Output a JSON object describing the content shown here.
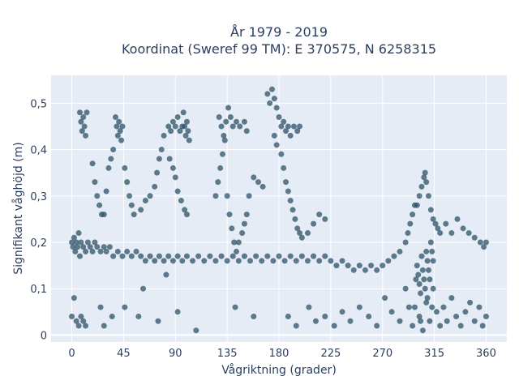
{
  "chart_data": {
    "type": "scatter",
    "title_lines": [
      "År 1979 - 2019",
      "Koordinat (Sweref 99 TM): E 370575, N 6258315"
    ],
    "xlabel": "Vågriktning (grader)",
    "ylabel": "Signifikant våghöjd (m)",
    "xlim": [
      -18,
      378
    ],
    "ylim": [
      -0.015,
      0.56
    ],
    "x_ticks": [
      0,
      45,
      90,
      135,
      180,
      225,
      270,
      315,
      360
    ],
    "x_tick_labels": [
      "0",
      "45",
      "90",
      "135",
      "180",
      "225",
      "270",
      "315",
      "360"
    ],
    "y_ticks": [
      0,
      0.1,
      0.2,
      0.3,
      0.4,
      0.5
    ],
    "y_tick_labels": [
      "0",
      "0,1",
      "0,2",
      "0,3",
      "0,4",
      "0,5"
    ],
    "grid": true,
    "background_color": "#e5ecf6",
    "marker_color": "#2e5367",
    "series": [
      {
        "points": [
          [
            0,
            0.2
          ],
          [
            1,
            0.19
          ],
          [
            2,
            0.21
          ],
          [
            3,
            0.18
          ],
          [
            4,
            0.2
          ],
          [
            5,
            0.19
          ],
          [
            6,
            0.22
          ],
          [
            7,
            0.17
          ],
          [
            8,
            0.2
          ],
          [
            10,
            0.19
          ],
          [
            12,
            0.18
          ],
          [
            14,
            0.2
          ],
          [
            16,
            0.19
          ],
          [
            18,
            0.18
          ],
          [
            20,
            0.2
          ],
          [
            22,
            0.19
          ],
          [
            25,
            0.18
          ],
          [
            28,
            0.19
          ],
          [
            30,
            0.18
          ],
          [
            33,
            0.19
          ],
          [
            36,
            0.17
          ],
          [
            40,
            0.18
          ],
          [
            44,
            0.17
          ],
          [
            48,
            0.18
          ],
          [
            52,
            0.17
          ],
          [
            56,
            0.18
          ],
          [
            60,
            0.17
          ],
          [
            64,
            0.16
          ],
          [
            68,
            0.17
          ],
          [
            72,
            0.16
          ],
          [
            76,
            0.17
          ],
          [
            80,
            0.16
          ],
          [
            84,
            0.17
          ],
          [
            88,
            0.16
          ],
          [
            92,
            0.17
          ],
          [
            96,
            0.16
          ],
          [
            100,
            0.17
          ],
          [
            105,
            0.16
          ],
          [
            110,
            0.17
          ],
          [
            115,
            0.16
          ],
          [
            120,
            0.17
          ],
          [
            125,
            0.16
          ],
          [
            130,
            0.17
          ],
          [
            135,
            0.16
          ],
          [
            140,
            0.17
          ],
          [
            145,
            0.16
          ],
          [
            150,
            0.17
          ],
          [
            155,
            0.16
          ],
          [
            160,
            0.17
          ],
          [
            165,
            0.16
          ],
          [
            170,
            0.17
          ],
          [
            175,
            0.16
          ],
          [
            180,
            0.17
          ],
          [
            185,
            0.16
          ],
          [
            190,
            0.17
          ],
          [
            195,
            0.16
          ],
          [
            200,
            0.17
          ],
          [
            205,
            0.16
          ],
          [
            210,
            0.17
          ],
          [
            215,
            0.16
          ],
          [
            220,
            0.17
          ],
          [
            225,
            0.16
          ],
          [
            230,
            0.15
          ],
          [
            235,
            0.16
          ],
          [
            240,
            0.15
          ],
          [
            245,
            0.14
          ],
          [
            250,
            0.15
          ],
          [
            255,
            0.14
          ],
          [
            260,
            0.15
          ],
          [
            265,
            0.14
          ],
          [
            270,
            0.15
          ],
          [
            275,
            0.16
          ],
          [
            280,
            0.17
          ],
          [
            285,
            0.18
          ],
          [
            290,
            0.2
          ],
          [
            292,
            0.22
          ],
          [
            294,
            0.24
          ],
          [
            296,
            0.26
          ],
          [
            298,
            0.28
          ],
          [
            300,
            0.28
          ],
          [
            302,
            0.3
          ],
          [
            304,
            0.32
          ],
          [
            306,
            0.34
          ],
          [
            307,
            0.35
          ],
          [
            308,
            0.33
          ],
          [
            310,
            0.3
          ],
          [
            312,
            0.27
          ],
          [
            314,
            0.25
          ],
          [
            316,
            0.24
          ],
          [
            318,
            0.23
          ],
          [
            320,
            0.22
          ],
          [
            325,
            0.24
          ],
          [
            330,
            0.22
          ],
          [
            335,
            0.25
          ],
          [
            340,
            0.23
          ],
          [
            345,
            0.22
          ],
          [
            350,
            0.21
          ],
          [
            355,
            0.2
          ],
          [
            358,
            0.19
          ],
          [
            360,
            0.2
          ],
          [
            7,
            0.48
          ],
          [
            8,
            0.46
          ],
          [
            9,
            0.44
          ],
          [
            10,
            0.47
          ],
          [
            11,
            0.45
          ],
          [
            12,
            0.43
          ],
          [
            13,
            0.48
          ],
          [
            38,
            0.47
          ],
          [
            39,
            0.45
          ],
          [
            40,
            0.43
          ],
          [
            41,
            0.46
          ],
          [
            42,
            0.44
          ],
          [
            43,
            0.42
          ],
          [
            44,
            0.45
          ],
          [
            84,
            0.45
          ],
          [
            86,
            0.44
          ],
          [
            88,
            0.46
          ],
          [
            90,
            0.45
          ],
          [
            92,
            0.47
          ],
          [
            94,
            0.44
          ],
          [
            96,
            0.45
          ],
          [
            97,
            0.48
          ],
          [
            98,
            0.45
          ],
          [
            99,
            0.43
          ],
          [
            100,
            0.46
          ],
          [
            101,
            0.44
          ],
          [
            102,
            0.42
          ],
          [
            128,
            0.47
          ],
          [
            130,
            0.45
          ],
          [
            132,
            0.43
          ],
          [
            134,
            0.46
          ],
          [
            136,
            0.49
          ],
          [
            138,
            0.47
          ],
          [
            140,
            0.45
          ],
          [
            143,
            0.46
          ],
          [
            146,
            0.45
          ],
          [
            150,
            0.46
          ],
          [
            152,
            0.44
          ],
          [
            170,
            0.52
          ],
          [
            172,
            0.5
          ],
          [
            174,
            0.53
          ],
          [
            176,
            0.51
          ],
          [
            178,
            0.49
          ],
          [
            180,
            0.47
          ],
          [
            182,
            0.45
          ],
          [
            184,
            0.46
          ],
          [
            186,
            0.44
          ],
          [
            188,
            0.45
          ],
          [
            190,
            0.43
          ],
          [
            193,
            0.45
          ],
          [
            196,
            0.44
          ],
          [
            198,
            0.45
          ],
          [
            18,
            0.37
          ],
          [
            20,
            0.33
          ],
          [
            22,
            0.3
          ],
          [
            24,
            0.28
          ],
          [
            26,
            0.26
          ],
          [
            28,
            0.26
          ],
          [
            30,
            0.31
          ],
          [
            32,
            0.36
          ],
          [
            34,
            0.38
          ],
          [
            36,
            0.4
          ],
          [
            46,
            0.36
          ],
          [
            48,
            0.33
          ],
          [
            50,
            0.3
          ],
          [
            52,
            0.28
          ],
          [
            54,
            0.26
          ],
          [
            60,
            0.27
          ],
          [
            64,
            0.29
          ],
          [
            68,
            0.3
          ],
          [
            72,
            0.32
          ],
          [
            74,
            0.35
          ],
          [
            76,
            0.38
          ],
          [
            78,
            0.4
          ],
          [
            80,
            0.43
          ],
          [
            85,
            0.38
          ],
          [
            88,
            0.36
          ],
          [
            90,
            0.34
          ],
          [
            92,
            0.31
          ],
          [
            95,
            0.29
          ],
          [
            98,
            0.27
          ],
          [
            100,
            0.26
          ],
          [
            125,
            0.3
          ],
          [
            127,
            0.33
          ],
          [
            129,
            0.36
          ],
          [
            131,
            0.39
          ],
          [
            133,
            0.42
          ],
          [
            135,
            0.3
          ],
          [
            137,
            0.26
          ],
          [
            139,
            0.23
          ],
          [
            141,
            0.2
          ],
          [
            143,
            0.18
          ],
          [
            145,
            0.2
          ],
          [
            148,
            0.22
          ],
          [
            150,
            0.24
          ],
          [
            152,
            0.26
          ],
          [
            154,
            0.3
          ],
          [
            158,
            0.34
          ],
          [
            162,
            0.33
          ],
          [
            166,
            0.32
          ],
          [
            176,
            0.43
          ],
          [
            178,
            0.41
          ],
          [
            182,
            0.39
          ],
          [
            184,
            0.36
          ],
          [
            186,
            0.33
          ],
          [
            188,
            0.31
          ],
          [
            190,
            0.29
          ],
          [
            192,
            0.27
          ],
          [
            194,
            0.25
          ],
          [
            196,
            0.23
          ],
          [
            198,
            0.22
          ],
          [
            200,
            0.21
          ],
          [
            205,
            0.22
          ],
          [
            210,
            0.24
          ],
          [
            215,
            0.26
          ],
          [
            220,
            0.25
          ],
          [
            0,
            0.04
          ],
          [
            2,
            0.08
          ],
          [
            4,
            0.03
          ],
          [
            6,
            0.02
          ],
          [
            8,
            0.04
          ],
          [
            10,
            0.03
          ],
          [
            12,
            0.02
          ],
          [
            25,
            0.06
          ],
          [
            28,
            0.02
          ],
          [
            35,
            0.04
          ],
          [
            46,
            0.06
          ],
          [
            58,
            0.04
          ],
          [
            62,
            0.1
          ],
          [
            75,
            0.03
          ],
          [
            82,
            0.13
          ],
          [
            92,
            0.05
          ],
          [
            108,
            0.01
          ],
          [
            142,
            0.06
          ],
          [
            158,
            0.04
          ],
          [
            188,
            0.04
          ],
          [
            195,
            0.02
          ],
          [
            206,
            0.06
          ],
          [
            212,
            0.03
          ],
          [
            220,
            0.04
          ],
          [
            228,
            0.02
          ],
          [
            235,
            0.05
          ],
          [
            242,
            0.03
          ],
          [
            250,
            0.06
          ],
          [
            258,
            0.04
          ],
          [
            265,
            0.02
          ],
          [
            272,
            0.08
          ],
          [
            278,
            0.05
          ],
          [
            285,
            0.03
          ],
          [
            290,
            0.1
          ],
          [
            293,
            0.06
          ],
          [
            296,
            0.02
          ],
          [
            299,
            0.12
          ],
          [
            302,
            0.04
          ],
          [
            305,
            0.01
          ],
          [
            308,
            0.07
          ],
          [
            311,
            0.03
          ],
          [
            314,
            0.1
          ],
          [
            317,
            0.05
          ],
          [
            320,
            0.02
          ],
          [
            323,
            0.06
          ],
          [
            326,
            0.03
          ],
          [
            330,
            0.08
          ],
          [
            334,
            0.04
          ],
          [
            338,
            0.02
          ],
          [
            342,
            0.05
          ],
          [
            346,
            0.07
          ],
          [
            350,
            0.03
          ],
          [
            354,
            0.06
          ],
          [
            357,
            0.02
          ],
          [
            360,
            0.04
          ],
          [
            300,
            0.15
          ],
          [
            301,
            0.13
          ],
          [
            302,
            0.11
          ],
          [
            303,
            0.09
          ],
          [
            304,
            0.17
          ],
          [
            305,
            0.14
          ],
          [
            306,
            0.12
          ],
          [
            307,
            0.1
          ],
          [
            308,
            0.18
          ],
          [
            309,
            0.16
          ],
          [
            310,
            0.14
          ],
          [
            311,
            0.12
          ],
          [
            312,
            0.2
          ],
          [
            313,
            0.18
          ],
          [
            314,
            0.16
          ],
          [
            298,
            0.06
          ],
          [
            303,
            0.03
          ],
          [
            309,
            0.08
          ],
          [
            313,
            0.06
          ]
        ]
      }
    ]
  }
}
